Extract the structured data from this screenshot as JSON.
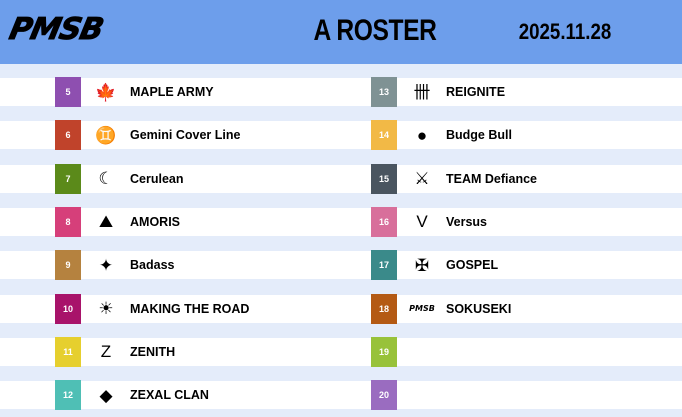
{
  "header": {
    "logo": "PMSB",
    "title": "A ROSTER",
    "date": "2025.11.28",
    "background": "#6d9eeb"
  },
  "teams": [
    {
      "num": "5",
      "name": "MAPLE ARMY",
      "color": "#8e4fb0",
      "icon": "maple-leaf-icon",
      "glyph": "🍁"
    },
    {
      "num": "6",
      "name": "Gemini Cover Line",
      "color": "#c0432b",
      "icon": "gemini-logo-icon",
      "glyph": "♊"
    },
    {
      "num": "7",
      "name": "Cerulean",
      "color": "#5b8a1a",
      "icon": "crescent-logo-icon",
      "glyph": "☾"
    },
    {
      "num": "8",
      "name": "AMORIS",
      "color": "#d63f7a",
      "icon": "amoris-logo-icon",
      "glyph": "⛰"
    },
    {
      "num": "9",
      "name": "Badass",
      "color": "#b5823f",
      "icon": "badass-logo-icon",
      "glyph": "✦"
    },
    {
      "num": "10",
      "name": "MAKING THE ROAD",
      "color": "#a8136a",
      "icon": "making-the-road-logo-icon",
      "glyph": "☀"
    },
    {
      "num": "11",
      "name": "ZENITH",
      "color": "#e6cf2e",
      "icon": "zenith-logo-icon",
      "glyph": "Z"
    },
    {
      "num": "12",
      "name": "ZEXAL CLAN",
      "color": "#4fbfb5",
      "icon": "zexal-logo-icon",
      "glyph": "◆"
    },
    {
      "num": "13",
      "name": "REIGNITE",
      "color": "#7f9294",
      "icon": "reignite-logo-icon",
      "glyph": "卌"
    },
    {
      "num": "14",
      "name": "Budge Bull",
      "color": "#f2b946",
      "icon": "bull-logo-icon",
      "glyph": "●"
    },
    {
      "num": "15",
      "name": "TEAM Defiance",
      "color": "#4a5560",
      "icon": "defiance-logo-icon",
      "glyph": "⚔"
    },
    {
      "num": "16",
      "name": "Versus",
      "color": "#d86f9b",
      "icon": "versus-logo-icon",
      "glyph": "V"
    },
    {
      "num": "17",
      "name": "GOSPEL",
      "color": "#3a8a8a",
      "icon": "gospel-logo-icon",
      "glyph": "✠"
    },
    {
      "num": "18",
      "name": "SOKUSEKI",
      "color": "#b45a14",
      "icon": "pmsb-logo-icon",
      "glyph": "PMSB"
    },
    {
      "num": "19",
      "name": "",
      "color": "#98c23a",
      "icon": "",
      "glyph": ""
    },
    {
      "num": "20",
      "name": "",
      "color": "#9a6cc0",
      "icon": "",
      "glyph": ""
    }
  ]
}
